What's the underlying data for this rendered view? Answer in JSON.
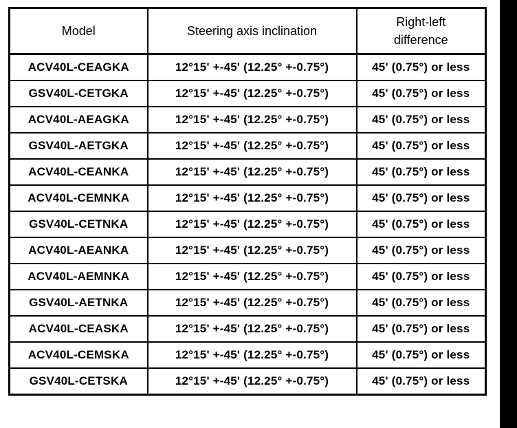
{
  "colors": {
    "text": "#000000",
    "border": "#000000",
    "background": "#ffffff",
    "edge_bar": "#000000"
  },
  "table": {
    "headers": {
      "model": "Model",
      "inclination": "Steering axis inclination",
      "difference_line1": "Right-left",
      "difference_line2": "difference"
    },
    "rows": [
      {
        "model": "ACV40L-CEAGKA",
        "inclination": "12°15' +-45' (12.25° +-0.75°)",
        "difference": "45' (0.75°) or less"
      },
      {
        "model": "GSV40L-CETGKA",
        "inclination": "12°15' +-45' (12.25° +-0.75°)",
        "difference": "45' (0.75°) or less"
      },
      {
        "model": "ACV40L-AEAGKA",
        "inclination": "12°15' +-45' (12.25° +-0.75°)",
        "difference": "45' (0.75°) or less"
      },
      {
        "model": "GSV40L-AETGKA",
        "inclination": "12°15' +-45' (12.25° +-0.75°)",
        "difference": "45' (0.75°) or less"
      },
      {
        "model": "ACV40L-CEANKA",
        "inclination": "12°15' +-45' (12.25° +-0.75°)",
        "difference": "45' (0.75°) or less"
      },
      {
        "model": "ACV40L-CEMNKA",
        "inclination": "12°15' +-45' (12.25° +-0.75°)",
        "difference": "45' (0.75°) or less"
      },
      {
        "model": "GSV40L-CETNKA",
        "inclination": "12°15' +-45' (12.25° +-0.75°)",
        "difference": "45' (0.75°) or less"
      },
      {
        "model": "ACV40L-AEANKA",
        "inclination": "12°15' +-45' (12.25° +-0.75°)",
        "difference": "45' (0.75°) or less"
      },
      {
        "model": "ACV40L-AEMNKA",
        "inclination": "12°15' +-45' (12.25° +-0.75°)",
        "difference": "45' (0.75°) or less"
      },
      {
        "model": "GSV40L-AETNKA",
        "inclination": "12°15' +-45' (12.25° +-0.75°)",
        "difference": "45' (0.75°) or less"
      },
      {
        "model": "ACV40L-CEASKA",
        "inclination": "12°15' +-45' (12.25° +-0.75°)",
        "difference": "45' (0.75°) or less"
      },
      {
        "model": "ACV40L-CEMSKA",
        "inclination": "12°15' +-45' (12.25° +-0.75°)",
        "difference": "45' (0.75°) or less"
      },
      {
        "model": "GSV40L-CETSKA",
        "inclination": "12°15' +-45' (12.25° +-0.75°)",
        "difference": "45' (0.75°) or less"
      }
    ]
  }
}
